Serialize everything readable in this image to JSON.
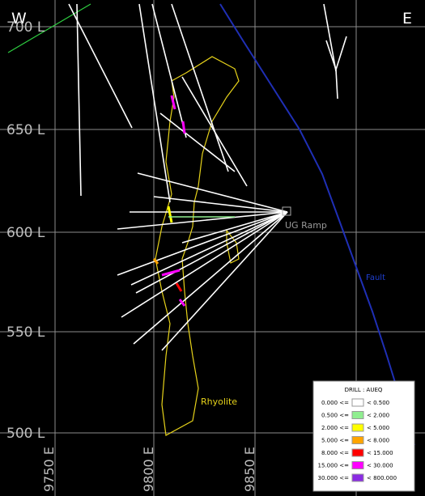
{
  "compass": {
    "west": "W",
    "east": "E"
  },
  "levels": [
    "700 L",
    "650 L",
    "600 L",
    "550 L",
    "500 L"
  ],
  "eastings": [
    "9750 E",
    "9800 E",
    "9850 E"
  ],
  "labels": {
    "ramp": "UG Ramp",
    "fault": "Fault",
    "rock": "Rhyolite"
  },
  "legend": {
    "title": "DRILL : AUEQ",
    "rows": [
      {
        "from": "0.000 <=",
        "to": "< 0.500",
        "color": "#ffffff"
      },
      {
        "from": "0.500 <=",
        "to": "< 2.000",
        "color": "#90ee90"
      },
      {
        "from": "2.000 <=",
        "to": "< 5.000",
        "color": "#ffff00"
      },
      {
        "from": "5.000 <=",
        "to": "< 8.000",
        "color": "#ffa500"
      },
      {
        "from": "8.000 <=",
        "to": "< 15.000",
        "color": "#ff0000"
      },
      {
        "from": "15.000 <=",
        "to": "< 30.000",
        "color": "#ff00ff"
      },
      {
        "from": "30.000 <=",
        "to": "< 800.000",
        "color": "#8a2be2"
      }
    ]
  }
}
